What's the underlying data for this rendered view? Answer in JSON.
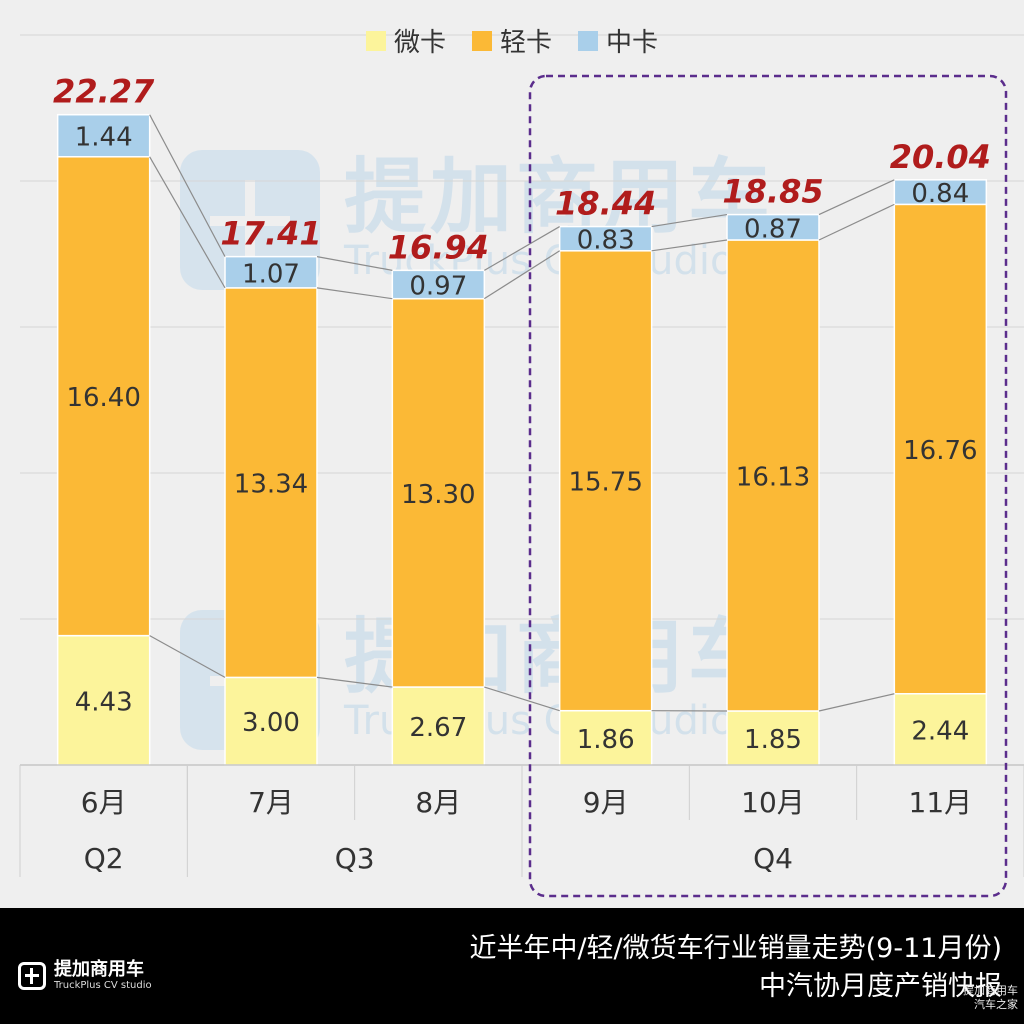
{
  "chart_data": {
    "type": "bar",
    "stacked": true,
    "categories": [
      "6月",
      "7月",
      "8月",
      "9月",
      "10月",
      "11月"
    ],
    "groups": [
      {
        "label": "Q2",
        "categories": [
          "6月"
        ]
      },
      {
        "label": "Q3",
        "categories": [
          "7月",
          "8月"
        ]
      },
      {
        "label": "Q4",
        "categories": [
          "9月",
          "10月",
          "11月"
        ]
      }
    ],
    "series": [
      {
        "name": "微卡",
        "values": [
          "4.43",
          "3.00",
          "2.67",
          "1.86",
          "1.85",
          "2.44"
        ],
        "color": "#fcf49b"
      },
      {
        "name": "轻卡",
        "values": [
          "16.40",
          "13.34",
          "13.30",
          "15.75",
          "16.13",
          "16.76"
        ],
        "color": "#fbb936"
      },
      {
        "name": "中卡",
        "values": [
          "1.44",
          "1.07",
          "0.97",
          "0.83",
          "0.87",
          "0.84"
        ],
        "color": "#a9cfea"
      }
    ],
    "totals": [
      "22.27",
      "17.41",
      "16.94",
      "18.44",
      "18.85",
      "20.04"
    ],
    "ylim": [
      0,
      25
    ],
    "grid": true,
    "legend": "top-center",
    "highlight_group": "Q4"
  },
  "watermark": {
    "cn": "提加商用车",
    "en": "TruckPlus CV studio"
  },
  "footer": {
    "brand_cn": "提加商用车",
    "brand_en": "TruckPlus CV studio",
    "caption_line1": "近半年中/轻/微货车行业销量走势(9-11月份)",
    "caption_line2": "中汽协月度产销快报",
    "corner_line1": "提加商用车",
    "corner_line2": "汽车之家"
  },
  "colors": {
    "background": "#efefef",
    "total_label": "#b01c1c",
    "connector": "#8c8c8c",
    "highlight_border": "#5b2d8c",
    "grid": "#d6d6d6",
    "footer_bg": "#000000"
  }
}
